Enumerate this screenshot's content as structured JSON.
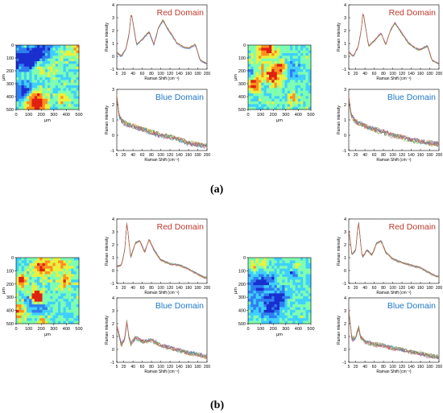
{
  "labels": {
    "a": "(a)",
    "b": "(b)"
  },
  "colors": {
    "red_domain_text": "#c0392b",
    "blue_domain_text": "#1f78c8",
    "heatmap_scale": [
      "#1a2fd0",
      "#2f7ff0",
      "#3fd0ff",
      "#7fffb0",
      "#e8f040",
      "#ff9020",
      "#e02010"
    ]
  },
  "chart_data": [
    {
      "type": "heatmap",
      "panel": "a-left",
      "xlabel": "μm",
      "ylabel": "μm",
      "xticks": [
        0,
        100,
        200,
        300,
        400,
        500
      ],
      "yticks": [
        0,
        100,
        200,
        300,
        400,
        500
      ],
      "xlim": [
        0,
        500
      ],
      "ylim": [
        0,
        500
      ],
      "seed": 11
    },
    {
      "type": "line",
      "panel": "a-left",
      "title": "Red Domain",
      "domain": "red",
      "xlabel": "Raman Shift (cm⁻¹)",
      "ylabel": "Raman intensity",
      "xlim": [
        5,
        200
      ],
      "ylim": [
        -1,
        4
      ],
      "xticks": [
        5,
        20,
        40,
        60,
        80,
        100,
        120,
        140,
        160,
        180,
        200
      ],
      "yticks": [
        -1,
        0,
        1,
        2,
        3,
        4
      ],
      "x": [
        5,
        15,
        25,
        32,
        36,
        40,
        48,
        60,
        75,
        85,
        95,
        105,
        112,
        125,
        135,
        150,
        160,
        175,
        185,
        200
      ],
      "y": [
        0.3,
        0.0,
        0.6,
        1.8,
        3.4,
        2.6,
        0.9,
        1.3,
        1.9,
        0.9,
        2.2,
        2.8,
        2.3,
        1.6,
        1.0,
        0.7,
        0.6,
        0.9,
        -0.3,
        -0.6
      ],
      "series_count": 8
    },
    {
      "type": "line",
      "panel": "a-left",
      "title": "Blue Domain",
      "domain": "blue",
      "xlabel": "Raman Shift (cm⁻¹)",
      "ylabel": "Raman intensity",
      "xlim": [
        5,
        200
      ],
      "ylim": [
        -1,
        3
      ],
      "xticks": [
        5,
        20,
        40,
        60,
        80,
        100,
        120,
        140,
        160,
        180,
        200
      ],
      "yticks": [
        -1,
        0,
        1,
        2,
        3
      ],
      "x": [
        5,
        10,
        20,
        40,
        60,
        80,
        100,
        120,
        140,
        160,
        180,
        200
      ],
      "y": [
        2.6,
        1.2,
        0.8,
        0.6,
        0.4,
        0.2,
        0.0,
        -0.1,
        -0.3,
        -0.5,
        -0.6,
        -0.7
      ],
      "series_count": 8
    },
    {
      "type": "heatmap",
      "panel": "a-right",
      "xlabel": "μm",
      "ylabel": "μm",
      "xticks": [
        0,
        100,
        200,
        300,
        400,
        500
      ],
      "yticks": [
        0,
        100,
        200,
        300,
        400,
        500
      ],
      "xlim": [
        0,
        500
      ],
      "ylim": [
        0,
        500
      ],
      "seed": 23
    },
    {
      "type": "line",
      "panel": "a-right",
      "title": "Red Domain",
      "domain": "red",
      "xlabel": "Raman Shift (cm⁻¹)",
      "ylabel": "Raman intensity",
      "xlim": [
        5,
        200
      ],
      "ylim": [
        -1,
        4
      ],
      "xticks": [
        5,
        20,
        40,
        60,
        80,
        100,
        120,
        140,
        160,
        180,
        200
      ],
      "yticks": [
        -1,
        0,
        1,
        2,
        3,
        4
      ],
      "x": [
        5,
        15,
        25,
        32,
        36,
        40,
        48,
        60,
        75,
        85,
        95,
        105,
        112,
        125,
        135,
        150,
        160,
        175,
        185,
        200
      ],
      "y": [
        0.3,
        0.0,
        0.7,
        2.0,
        3.5,
        2.5,
        0.8,
        1.2,
        1.8,
        0.9,
        2.0,
        2.6,
        2.2,
        1.5,
        1.0,
        0.6,
        0.5,
        0.8,
        -0.3,
        -0.6
      ],
      "series_count": 8
    },
    {
      "type": "line",
      "panel": "a-right",
      "title": "Blue Domain",
      "domain": "blue",
      "xlabel": "Raman Shift (cm⁻¹)",
      "ylabel": "Raman intensity",
      "xlim": [
        5,
        200
      ],
      "ylim": [
        -1,
        3
      ],
      "xticks": [
        5,
        20,
        40,
        60,
        80,
        100,
        120,
        140,
        160,
        180,
        200
      ],
      "yticks": [
        -1,
        0,
        1,
        2,
        3
      ],
      "x": [
        5,
        10,
        20,
        40,
        60,
        80,
        100,
        120,
        140,
        160,
        180,
        200
      ],
      "y": [
        2.5,
        1.3,
        0.9,
        0.6,
        0.4,
        0.2,
        0.0,
        -0.1,
        -0.3,
        -0.4,
        -0.5,
        -0.6
      ],
      "series_count": 8
    },
    {
      "type": "heatmap",
      "panel": "b-left",
      "xlabel": "μm",
      "ylabel": "μm",
      "xticks": [
        0,
        100,
        200,
        300,
        400,
        500
      ],
      "yticks": [
        0,
        100,
        200,
        300,
        400,
        500
      ],
      "xlim": [
        0,
        500
      ],
      "ylim": [
        0,
        500
      ],
      "seed": 37
    },
    {
      "type": "line",
      "panel": "b-left",
      "title": "Red Domain",
      "domain": "red",
      "xlabel": "Raman Shift (cm⁻¹)",
      "ylabel": "Raman intensity",
      "xlim": [
        5,
        200
      ],
      "ylim": [
        -1,
        4
      ],
      "xticks": [
        5,
        20,
        40,
        60,
        80,
        100,
        120,
        140,
        160,
        180,
        200
      ],
      "yticks": [
        -1,
        0,
        1,
        2,
        3,
        4
      ],
      "x": [
        5,
        15,
        22,
        27,
        30,
        35,
        45,
        55,
        65,
        75,
        85,
        100,
        120,
        140,
        160,
        175,
        190,
        200
      ],
      "y": [
        0.3,
        0.4,
        1.5,
        3.8,
        2.6,
        1.0,
        2.1,
        2.3,
        1.4,
        2.4,
        1.6,
        0.8,
        0.5,
        0.4,
        0.1,
        -0.2,
        -0.5,
        -0.6
      ],
      "series_count": 8
    },
    {
      "type": "line",
      "panel": "b-left",
      "title": "Blue Domain",
      "domain": "blue",
      "xlabel": "Raman Shift (cm⁻¹)",
      "ylabel": "Raman intensity",
      "xlim": [
        5,
        200
      ],
      "ylim": [
        -1,
        4
      ],
      "xticks": [
        5,
        20,
        40,
        60,
        80,
        100,
        120,
        140,
        160,
        180,
        200
      ],
      "yticks": [
        -1,
        0,
        1,
        2,
        3,
        4
      ],
      "x": [
        5,
        15,
        22,
        27,
        30,
        35,
        45,
        60,
        80,
        100,
        120,
        140,
        160,
        180,
        200
      ],
      "y": [
        1.8,
        0.3,
        0.8,
        2.2,
        1.2,
        0.4,
        0.9,
        0.6,
        0.7,
        0.3,
        0.1,
        -0.1,
        -0.3,
        -0.4,
        -0.6
      ],
      "series_count": 8
    },
    {
      "type": "heatmap",
      "panel": "b-right",
      "xlabel": "μm",
      "ylabel": "μm",
      "xticks": [
        0,
        100,
        200,
        300,
        400,
        500
      ],
      "yticks": [
        0,
        100,
        200,
        300,
        400,
        500
      ],
      "xlim": [
        0,
        500
      ],
      "ylim": [
        0,
        500
      ],
      "seed": 53
    },
    {
      "type": "line",
      "panel": "b-right",
      "title": "Red Domain",
      "domain": "red",
      "xlabel": "Raman Shift (cm⁻¹)",
      "ylabel": "Raman intensity",
      "xlim": [
        5,
        200
      ],
      "ylim": [
        -1,
        4
      ],
      "xticks": [
        5,
        20,
        40,
        60,
        80,
        100,
        120,
        140,
        160,
        180,
        200
      ],
      "yticks": [
        -1,
        0,
        1,
        2,
        3,
        4
      ],
      "x": [
        5,
        12,
        20,
        26,
        30,
        34,
        45,
        55,
        65,
        75,
        85,
        100,
        120,
        140,
        160,
        175,
        190,
        200
      ],
      "y": [
        3.2,
        1.2,
        1.6,
        3.9,
        2.4,
        1.0,
        1.6,
        1.2,
        2.1,
        2.3,
        1.4,
        0.9,
        0.6,
        0.4,
        0.2,
        -0.1,
        -0.4,
        -0.5
      ],
      "series_count": 8
    },
    {
      "type": "line",
      "panel": "b-right",
      "title": "Blue Domain",
      "domain": "blue",
      "xlabel": "Raman Shift (cm⁻¹)",
      "ylabel": "Raman intensity",
      "xlim": [
        5,
        200
      ],
      "ylim": [
        -1,
        4
      ],
      "xticks": [
        5,
        20,
        40,
        60,
        80,
        100,
        120,
        140,
        160,
        180,
        200
      ],
      "yticks": [
        -1,
        0,
        1,
        2,
        3,
        4
      ],
      "x": [
        5,
        12,
        20,
        26,
        30,
        40,
        60,
        80,
        100,
        120,
        140,
        160,
        180,
        200
      ],
      "y": [
        3.0,
        0.8,
        0.9,
        1.8,
        1.0,
        0.6,
        0.4,
        0.3,
        0.1,
        0.0,
        -0.2,
        -0.3,
        -0.5,
        -0.6
      ],
      "series_count": 8
    }
  ]
}
